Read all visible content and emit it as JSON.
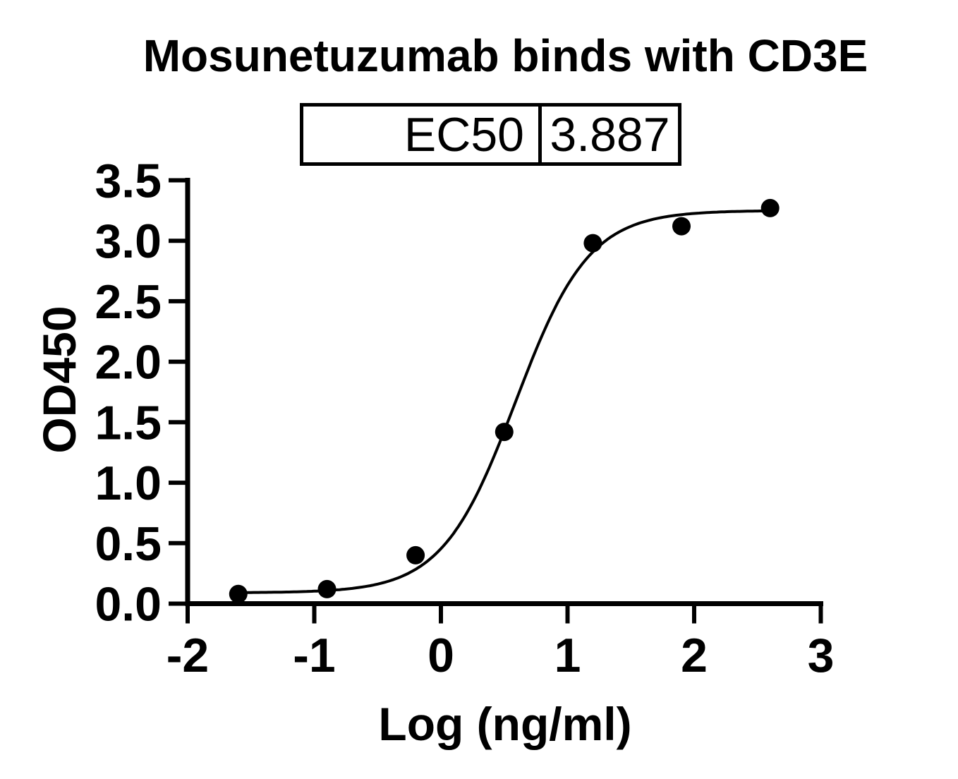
{
  "colors": {
    "ink": "#000000",
    "background": "#ffffff"
  },
  "chart_data": {
    "type": "scatter",
    "title": "Mosunetuzumab binds with CD3E",
    "xlabel": "Log (ng/ml)",
    "ylabel": "OD450",
    "xlim": [
      -2,
      3
    ],
    "ylim": [
      0,
      3.5
    ],
    "grid": false,
    "legend": "none",
    "x_ticks": [
      -2,
      -1,
      0,
      1,
      2,
      3
    ],
    "x_tick_labels": [
      "-2",
      "-1",
      "0",
      "1",
      "2",
      "3"
    ],
    "y_ticks": [
      0.0,
      0.5,
      1.0,
      1.5,
      2.0,
      2.5,
      3.0,
      3.5
    ],
    "y_tick_labels": [
      "0.0",
      "0.5",
      "1.0",
      "1.5",
      "2.0",
      "2.5",
      "3.0",
      "3.5"
    ],
    "points": [
      [
        -1.6,
        0.08
      ],
      [
        -0.9,
        0.12
      ],
      [
        -0.2,
        0.4
      ],
      [
        0.5,
        1.42
      ],
      [
        1.2,
        2.98
      ],
      [
        1.9,
        3.12
      ],
      [
        2.6,
        3.27
      ]
    ],
    "fit_curve": {
      "model": "4PL sigmoid",
      "bottom": 0.09,
      "top": 3.25,
      "logEC50": 0.59,
      "hillslope": 1.5,
      "x_start": -1.6,
      "x_end": 2.6
    },
    "ec50_table": {
      "label": "EC50",
      "value": "3.887"
    }
  }
}
